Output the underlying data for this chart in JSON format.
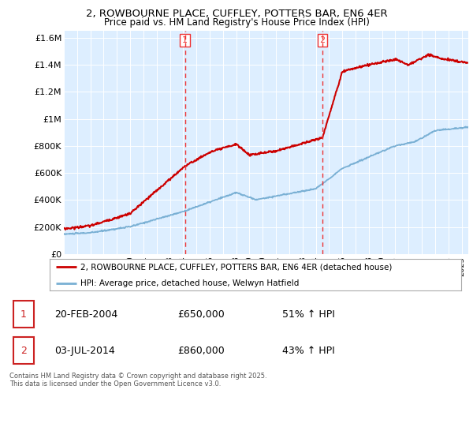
{
  "title": "2, ROWBOURNE PLACE, CUFFLEY, POTTERS BAR, EN6 4ER",
  "subtitle": "Price paid vs. HM Land Registry's House Price Index (HPI)",
  "sale1_date": "20-FEB-2004",
  "sale1_price": 650000,
  "sale1_label": "1",
  "sale1_pct": "51% ↑ HPI",
  "sale2_date": "03-JUL-2014",
  "sale2_price": 860000,
  "sale2_label": "2",
  "sale2_pct": "43% ↑ HPI",
  "legend_house": "2, ROWBOURNE PLACE, CUFFLEY, POTTERS BAR, EN6 4ER (detached house)",
  "legend_hpi": "HPI: Average price, detached house, Welwyn Hatfield",
  "footer": "Contains HM Land Registry data © Crown copyright and database right 2025.\nThis data is licensed under the Open Government Licence v3.0.",
  "house_color": "#cc0000",
  "hpi_color": "#7ab0d4",
  "vline_color": "#ee3333",
  "bg_color": "#ddeeff",
  "ylim_min": 0,
  "ylim_max": 1650000,
  "yticks": [
    0,
    200000,
    400000,
    600000,
    800000,
    1000000,
    1200000,
    1400000,
    1600000
  ],
  "ytick_labels": [
    "£0",
    "£200K",
    "£400K",
    "£600K",
    "£800K",
    "£1M",
    "£1.2M",
    "£1.4M",
    "£1.6M"
  ],
  "sale1_year": 2004.13,
  "sale2_year": 2014.5,
  "xlim_min": 1995,
  "xlim_max": 2025.5
}
